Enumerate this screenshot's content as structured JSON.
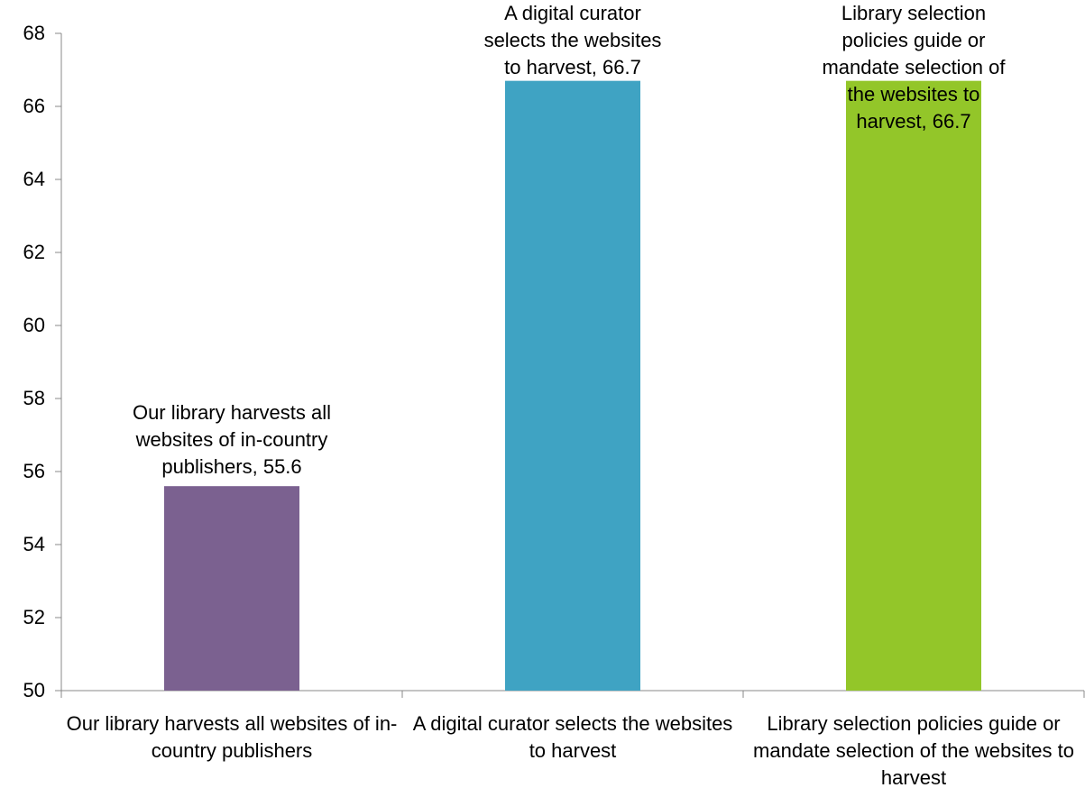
{
  "chart_data": {
    "type": "bar",
    "categories": [
      "Our library harvests all websites of in-country publishers",
      "A digital curator selects the websites to harvest",
      "Library selection policies guide or mandate selection of the websites to harvest"
    ],
    "values": [
      55.6,
      66.7,
      66.7
    ],
    "value_labels": [
      "Our library harvests all websites of in-country publishers, 55.6",
      "A digital curator selects the websites to harvest, 66.7",
      "Library selection policies guide or mandate selection of the websites to harvest, 66.7"
    ],
    "colors": [
      "#7b6190",
      "#3fa3c3",
      "#93c629"
    ],
    "ylim": [
      50,
      68
    ],
    "yticks": [
      50,
      52,
      54,
      56,
      58,
      60,
      62,
      64,
      66,
      68
    ],
    "grid": false
  }
}
